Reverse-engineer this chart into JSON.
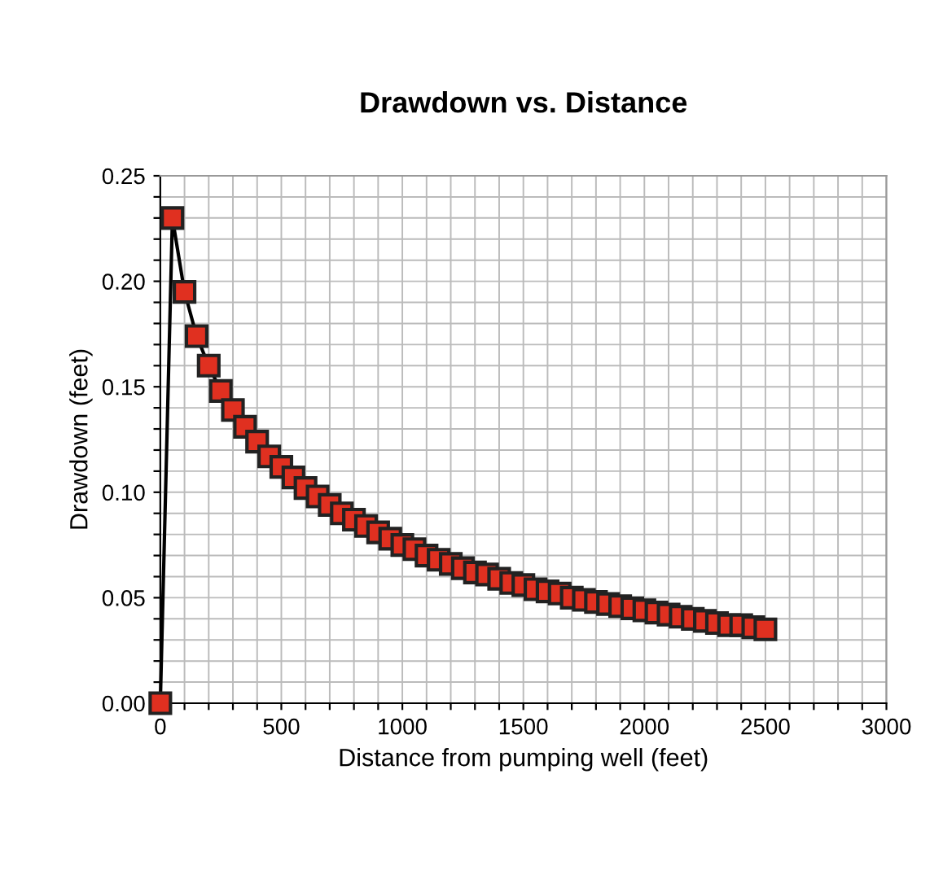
{
  "chart_data": {
    "type": "line",
    "title": "Drawdown vs. Distance",
    "xlabel": "Distance from pumping well (feet)",
    "ylabel": "Drawdown (feet)",
    "x": [
      0,
      50,
      100,
      150,
      200,
      250,
      300,
      350,
      400,
      450,
      500,
      550,
      600,
      650,
      700,
      750,
      800,
      850,
      900,
      950,
      1000,
      1050,
      1100,
      1150,
      1200,
      1250,
      1300,
      1350,
      1400,
      1450,
      1500,
      1550,
      1600,
      1650,
      1700,
      1750,
      1800,
      1850,
      1900,
      1950,
      2000,
      2050,
      2100,
      2150,
      2200,
      2250,
      2300,
      2350,
      2400,
      2450,
      2500
    ],
    "series": [
      {
        "color": "#e03020",
        "values": [
          0,
          0.23,
          0.195,
          0.174,
          0.16,
          0.148,
          0.139,
          0.131,
          0.124,
          0.117,
          0.112,
          0.107,
          0.102,
          0.098,
          0.094,
          0.09,
          0.087,
          0.084,
          0.081,
          0.078,
          0.075,
          0.073,
          0.07,
          0.068,
          0.066,
          0.064,
          0.062,
          0.061,
          0.059,
          0.057,
          0.056,
          0.054,
          0.053,
          0.052,
          0.05,
          0.049,
          0.048,
          0.047,
          0.046,
          0.045,
          0.044,
          0.043,
          0.042,
          0.041,
          0.04,
          0.039,
          0.038,
          0.037,
          0.037,
          0.036,
          0.035
        ]
      }
    ],
    "marker": "square",
    "line_style": "solid",
    "grid": true,
    "xlim": [
      0,
      3000
    ],
    "xticks": [
      0,
      {
        "value": 100,
        "label": null
      },
      {
        "value": 200,
        "label": null
      },
      {
        "value": 300,
        "label": null
      },
      {
        "value": 400,
        "label": null
      },
      500,
      {
        "value": 600,
        "label": null
      },
      {
        "value": 700,
        "label": null
      },
      {
        "value": 800,
        "label": null
      },
      {
        "value": 900,
        "label": null
      },
      1000,
      {
        "value": 1100,
        "label": null
      },
      {
        "value": 1200,
        "label": null
      },
      {
        "value": 1300,
        "label": null
      },
      {
        "value": 1400,
        "label": null
      },
      1500,
      {
        "value": 1600,
        "label": null
      },
      {
        "value": 1700,
        "label": null
      },
      {
        "value": 1800,
        "label": null
      },
      {
        "value": 1900,
        "label": null
      },
      2000,
      {
        "value": 2100,
        "label": null
      },
      {
        "value": 2200,
        "label": null
      },
      {
        "value": 2300,
        "label": null
      },
      {
        "value": 2400,
        "label": null
      },
      2500,
      {
        "value": 2600,
        "label": null
      },
      {
        "value": 2700,
        "label": null
      },
      {
        "value": 2800,
        "label": null
      },
      {
        "value": 2900,
        "label": null
      },
      3000
    ],
    "ylim": [
      0,
      0.25
    ],
    "yticks": [
      {
        "value": 0,
        "label": "0.00"
      },
      {
        "value": 0.01,
        "label": null
      },
      {
        "value": 0.02,
        "label": null
      },
      {
        "value": 0.03,
        "label": null
      },
      {
        "value": 0.04,
        "label": null
      },
      {
        "value": 0.05,
        "label": "0.05"
      },
      {
        "value": 0.06,
        "label": null
      },
      {
        "value": 0.07,
        "label": null
      },
      {
        "value": 0.08,
        "label": null
      },
      {
        "value": 0.09,
        "label": null
      },
      {
        "value": 0.1,
        "label": "0.10"
      },
      {
        "value": 0.11,
        "label": null
      },
      {
        "value": 0.12,
        "label": null
      },
      {
        "value": 0.13,
        "label": null
      },
      {
        "value": 0.14,
        "label": null
      },
      {
        "value": 0.15,
        "label": "0.15"
      },
      {
        "value": 0.16,
        "label": null
      },
      {
        "value": 0.17,
        "label": null
      },
      {
        "value": 0.18,
        "label": null
      },
      {
        "value": 0.19,
        "label": null
      },
      {
        "value": 0.2,
        "label": "0.20"
      },
      {
        "value": 0.21,
        "label": null
      },
      {
        "value": 0.22,
        "label": null
      },
      {
        "value": 0.23,
        "label": null
      },
      {
        "value": 0.24,
        "label": null
      },
      {
        "value": 0.25,
        "label": "0.25"
      }
    ]
  }
}
